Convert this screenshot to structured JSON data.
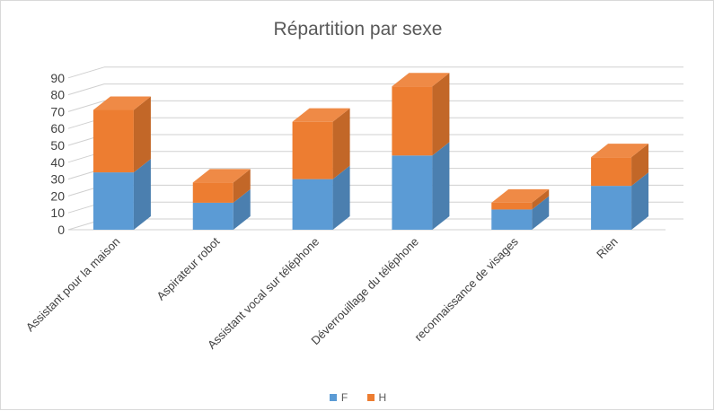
{
  "chart_data": {
    "type": "bar",
    "stacked": true,
    "three_d": true,
    "title": "Répartition par sexe",
    "xlabel": "",
    "ylabel": "",
    "ylim": [
      0,
      90
    ],
    "yticks": [
      0,
      10,
      20,
      30,
      40,
      50,
      60,
      70,
      80,
      90
    ],
    "grid": true,
    "legend_position": "bottom",
    "categories": [
      "Assistant pour la maison",
      "Aspirateur robot",
      "Assistant vocal sur téléphone",
      "Déverrouillage du téléphone",
      "reconnaissance de visages",
      "Rien"
    ],
    "series": [
      {
        "name": "F",
        "color": "#5B9BD5",
        "values": [
          34,
          16,
          30,
          44,
          12,
          26
        ]
      },
      {
        "name": "H",
        "color": "#ED7D31",
        "values": [
          37,
          12,
          34,
          41,
          4,
          17
        ]
      }
    ]
  }
}
